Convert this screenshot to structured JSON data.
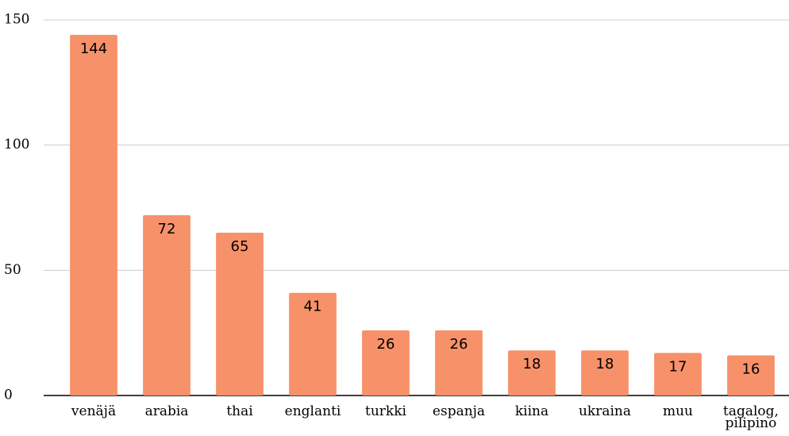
{
  "chart_data": {
    "type": "bar",
    "categories": [
      "venäjä",
      "arabia",
      "thai",
      "englanti",
      "turkki",
      "espanja",
      "kiina",
      "ukraina",
      "muu",
      "tagalog, pilipino"
    ],
    "values": [
      144,
      72,
      65,
      41,
      26,
      26,
      18,
      18,
      17,
      16
    ],
    "color": "#f79169",
    "ylim": [
      0,
      150
    ],
    "yticks": [
      0,
      50,
      100,
      150
    ],
    "grid": true
  }
}
